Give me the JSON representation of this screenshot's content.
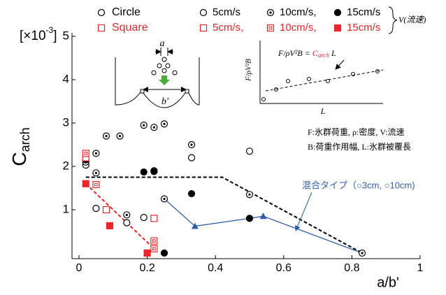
{
  "chart_data": {
    "type": "scatter",
    "y_label": {
      "main": "C",
      "sub": "arch"
    },
    "y_scale_label": {
      "pre": "[×10",
      "sup": "-3",
      "post": "]"
    },
    "x_label": "a/b'",
    "xlim": [
      0,
      1
    ],
    "xticks": [
      0,
      0.2,
      0.4,
      0.6,
      0.8,
      1
    ],
    "ylim": [
      0,
      5
    ],
    "yticks": [
      1,
      2,
      3,
      4,
      5
    ],
    "legend_groups": [
      "Circle",
      "Square"
    ],
    "legend_bracket": "V(流速)",
    "series": [
      {
        "name": "5cm/s",
        "group": 0,
        "marker": "circle",
        "fill": "open",
        "color": "#000000",
        "x": [
          0.02,
          0.05,
          0.14,
          0.19,
          0.33,
          0.5
        ],
        "values": [
          2.03,
          1.03,
          0.7,
          0.82,
          2.2,
          2.35
        ]
      },
      {
        "name": "10cm/s,",
        "group": 0,
        "marker": "circle",
        "fill": "dotted",
        "color": "#000000",
        "x": [
          0.02,
          0.05,
          0.05,
          0.08,
          0.12,
          0.14,
          0.19,
          0.22,
          0.25,
          0.22,
          0.25,
          0.33,
          0.5,
          0.83
        ],
        "values": [
          2.1,
          2.3,
          1.85,
          2.7,
          2.7,
          0.88,
          2.95,
          2.9,
          2.98,
          1.9,
          1.25,
          2.5,
          1.35,
          0.0
        ]
      },
      {
        "name": "15cm/s",
        "group": 0,
        "marker": "circle",
        "fill": "filled",
        "color": "#000000",
        "x": [
          0.02,
          0.19,
          0.22,
          0.25,
          0.33,
          0.5
        ],
        "values": [
          2.15,
          1.87,
          1.88,
          0.0,
          1.37,
          0.8
        ]
      },
      {
        "name": "5cm/s,",
        "group": 1,
        "marker": "square",
        "fill": "open",
        "color": "#e8262b",
        "x": [
          0.02,
          0.08,
          0.22
        ],
        "values": [
          2.2,
          1.0,
          0.8
        ]
      },
      {
        "name": "10cm/s,",
        "group": 1,
        "marker": "square",
        "fill": "dotted",
        "color": "#e8262b",
        "x": [
          0.02,
          0.05,
          0.22,
          0.22
        ],
        "values": [
          2.3,
          1.58,
          0.28,
          0.1
        ]
      },
      {
        "name": "15cm/s",
        "group": 1,
        "marker": "square",
        "fill": "filled",
        "color": "#e8262b",
        "x": [
          0.02,
          0.09,
          0.2
        ],
        "values": [
          1.6,
          0.63,
          0.0
        ]
      },
      {
        "name": "混合タイプ（○3cm, ○10cm)",
        "marker": "triangle",
        "fill": "filled",
        "color": "#2f5ea8",
        "x": [
          0.34,
          0.54
        ],
        "values": [
          0.62,
          0.85
        ]
      }
    ],
    "lines": [
      {
        "color": "#000000",
        "dash": true,
        "x": [
          0.02,
          0.42,
          0.83
        ],
        "values": [
          1.75,
          1.75,
          0.0
        ]
      },
      {
        "color": "#e8262b",
        "dash": true,
        "x": [
          0.02,
          0.22
        ],
        "values": [
          1.6,
          0.1
        ]
      },
      {
        "color": "#2f5ea8",
        "dash": false,
        "x": [
          0.25,
          0.34,
          0.5,
          0.54,
          0.83
        ],
        "values": [
          1.25,
          0.62,
          0.8,
          0.85,
          0.0
        ]
      }
    ],
    "schematic": {
      "a": "a",
      "b": "b'"
    },
    "inset": {
      "y_label": "F/ρV²B",
      "x_label": "L",
      "equation": {
        "lhs": "F/ρV²B = ",
        "c": "C",
        "sub": "arch",
        "rhs": " L"
      }
    },
    "notes": [
      "F:氷群荷重, ρ:密度, V:流速",
      "B:荷重作用幅, L:氷群被覆長"
    ]
  }
}
